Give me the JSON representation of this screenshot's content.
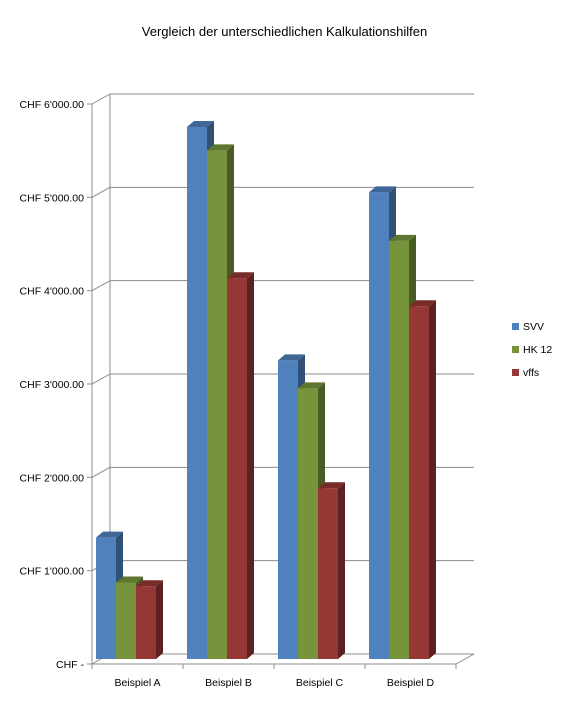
{
  "chart_data": {
    "type": "bar",
    "title": "Vergleich der unterschiedlichen Kalkulationshilfen",
    "categories": [
      "Beispiel A",
      "Beispiel B",
      "Beispiel C",
      "Beispiel D"
    ],
    "series": [
      {
        "name": "SVV",
        "color": "#4F81BD",
        "values": [
          1300,
          5700,
          3200,
          5000
        ]
      },
      {
        "name": "HK 12",
        "color": "#77933C",
        "values": [
          820,
          5450,
          2900,
          4480
        ]
      },
      {
        "name": "vffs",
        "color": "#953735",
        "values": [
          780,
          4080,
          1830,
          3780
        ]
      }
    ],
    "yticks": [
      {
        "value": 0,
        "label": "CHF -"
      },
      {
        "value": 1000,
        "label": "CHF 1'000.00"
      },
      {
        "value": 2000,
        "label": "CHF 2'000.00"
      },
      {
        "value": 3000,
        "label": "CHF 3'000.00"
      },
      {
        "value": 4000,
        "label": "CHF 4'000.00"
      },
      {
        "value": 5000,
        "label": "CHF 5'000.00"
      },
      {
        "value": 6000,
        "label": "CHF 6'000.00"
      }
    ],
    "ylim": [
      0,
      6000
    ],
    "grid": true,
    "legend_position": "right"
  }
}
